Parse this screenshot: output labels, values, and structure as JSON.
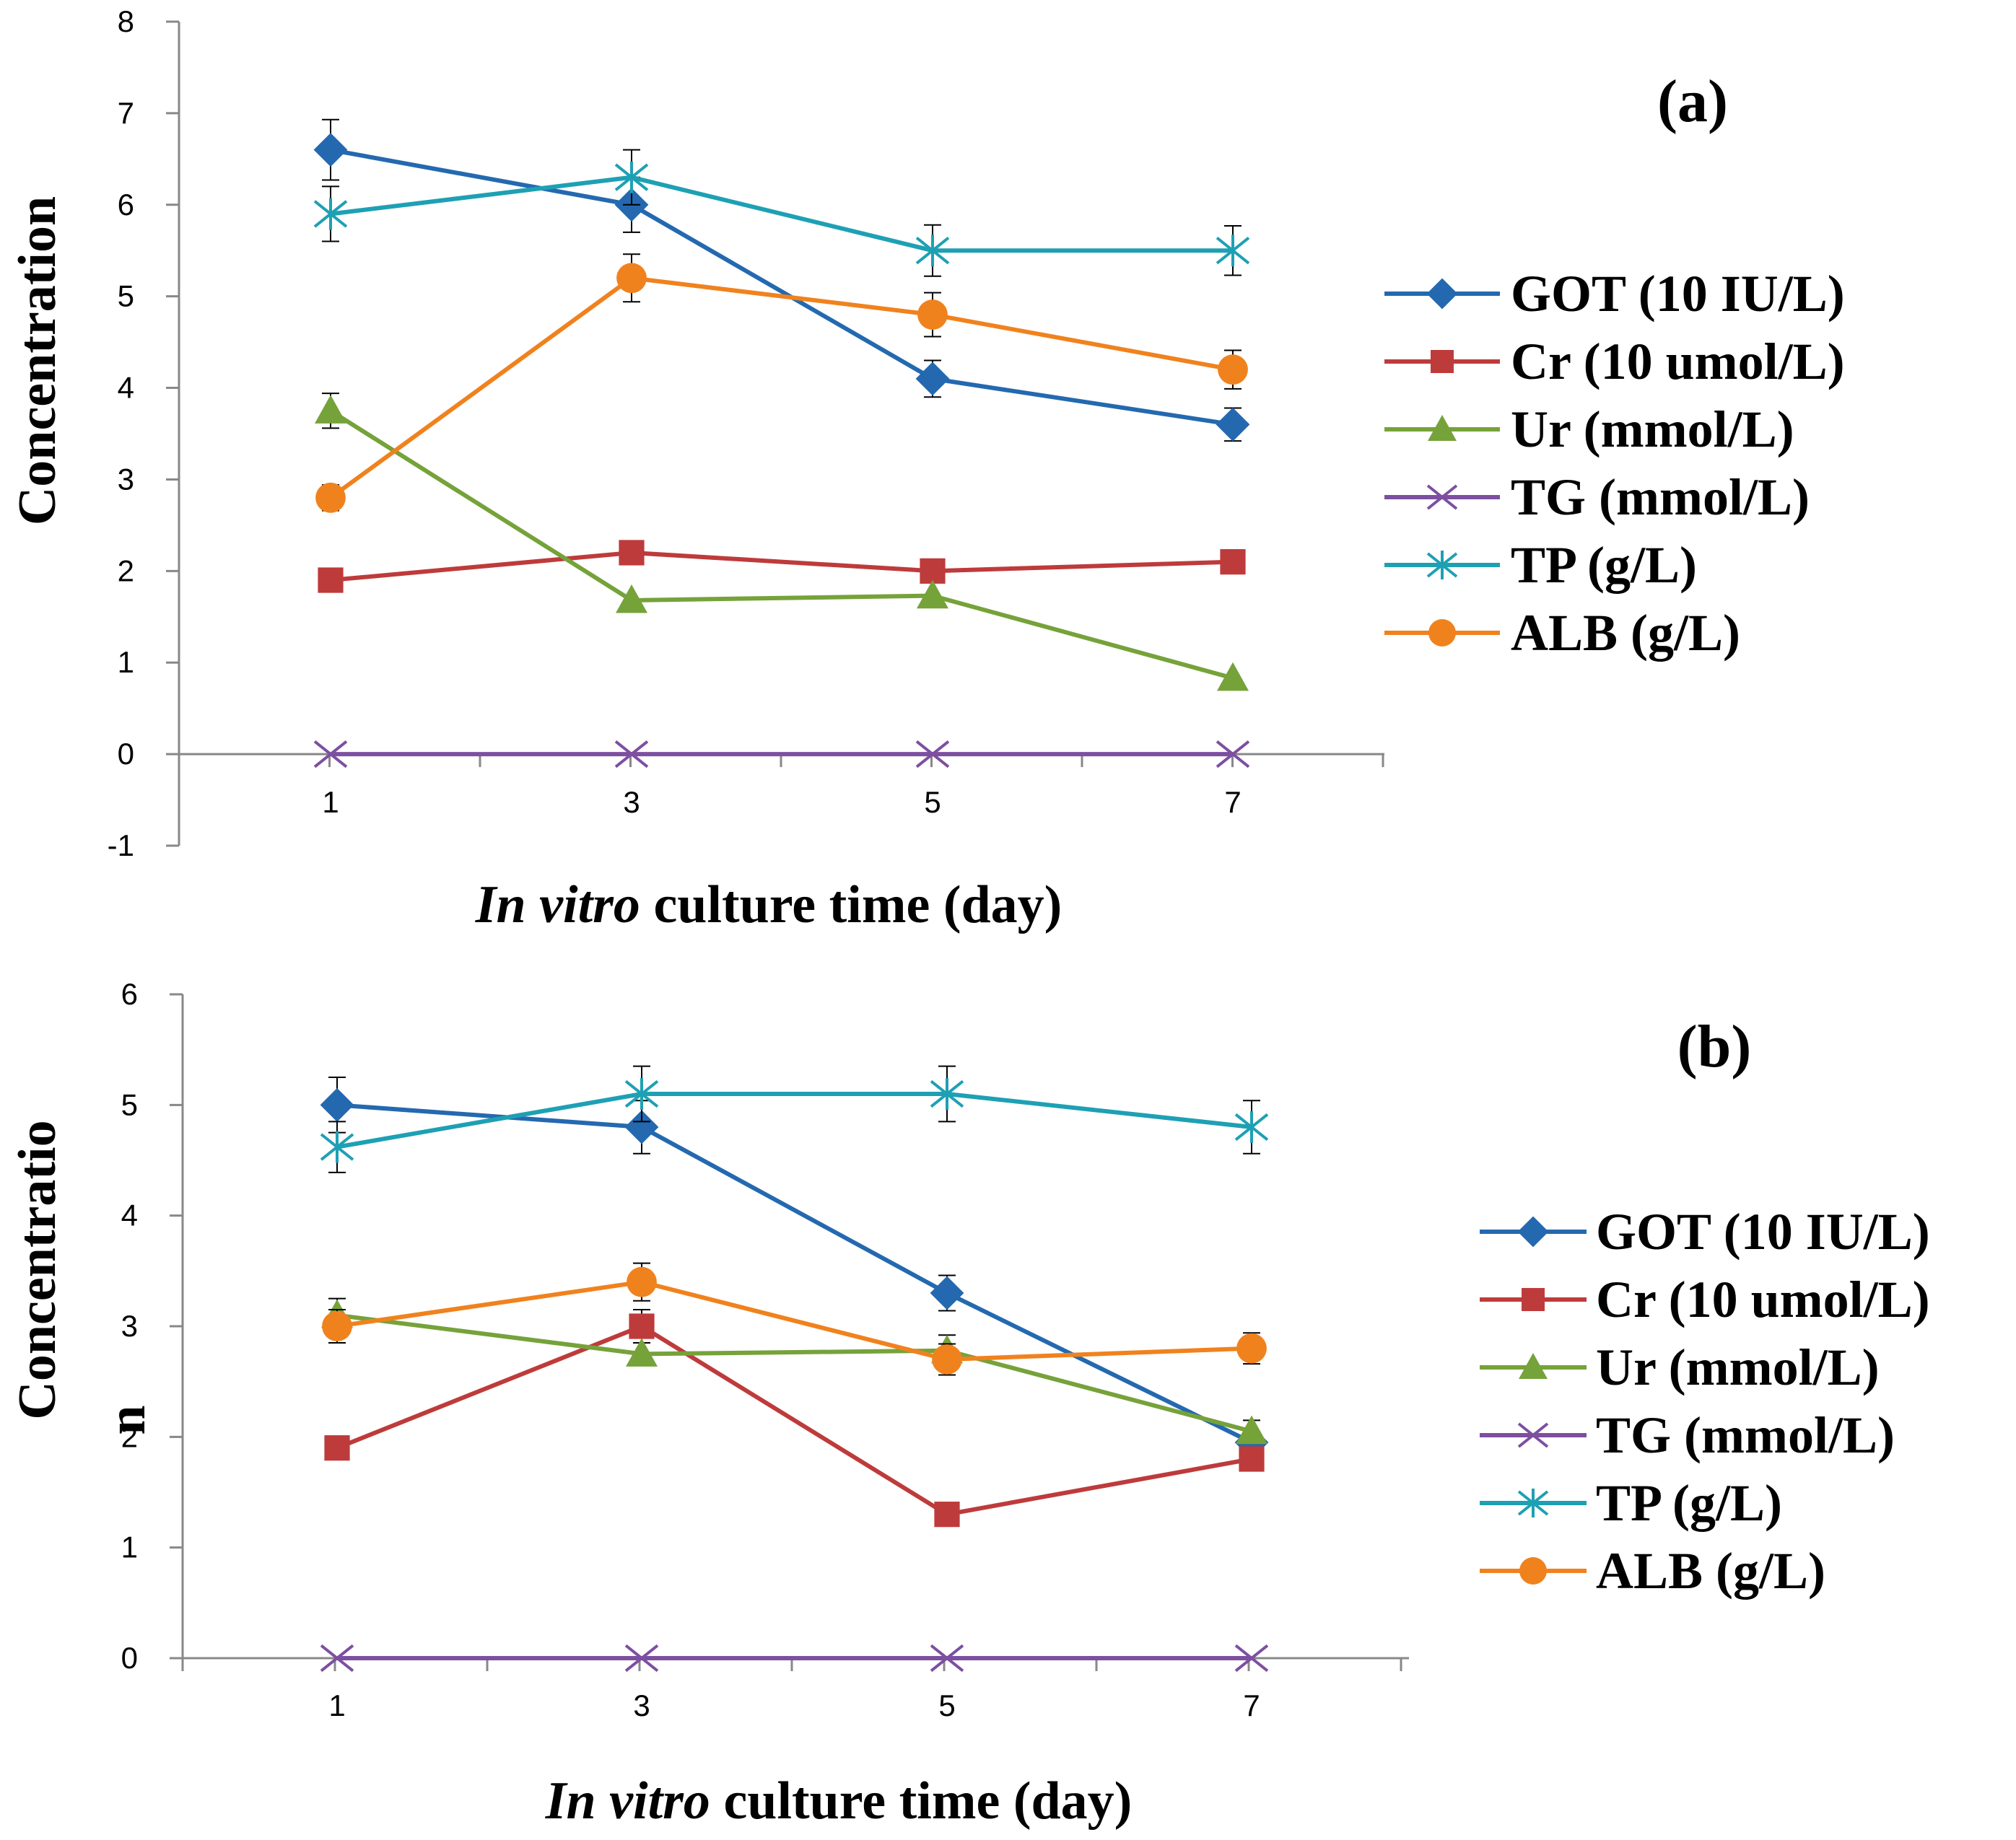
{
  "chart_data": [
    {
      "type": "line",
      "panel_label": "(a)",
      "ylabel": "Concentration",
      "xlabel_italic": "In vitro",
      "xlabel_rest": " culture time (day)",
      "categories": [
        "1",
        "3",
        "5",
        "7"
      ],
      "ylim": [
        -1,
        8
      ],
      "yticks": [
        "-1",
        "0",
        "1",
        "2",
        "3",
        "4",
        "5",
        "6",
        "7",
        "8"
      ],
      "grid": false,
      "legend_position": "right",
      "series": [
        {
          "name": "GOT  (10 IU/L)",
          "color": "#2469B0",
          "marker": "diamond",
          "values": [
            6.6,
            6.0,
            4.1,
            3.6
          ],
          "errors": [
            0.33,
            0.3,
            0.2,
            0.18
          ]
        },
        {
          "name": "Cr  (10 umol/L)",
          "color": "#BE3B3B",
          "marker": "square",
          "values": [
            1.9,
            2.2,
            2.0,
            2.1
          ],
          "errors": [
            0,
            0,
            0,
            0
          ]
        },
        {
          "name": "Ur  (mmol/L)",
          "color": "#76A23A",
          "marker": "triangle",
          "values": [
            3.75,
            1.68,
            1.73,
            0.83
          ],
          "errors": [
            0.19,
            0,
            0,
            0
          ]
        },
        {
          "name": "TG  (mmol/L)",
          "color": "#7D4FA0",
          "marker": "x",
          "values": [
            0,
            0,
            0,
            0
          ],
          "errors": [
            0,
            0,
            0,
            0
          ]
        },
        {
          "name": "TP  (g/L)",
          "color": "#1EA0B4",
          "marker": "star",
          "values": [
            5.9,
            6.3,
            5.5,
            5.5
          ],
          "errors": [
            0.3,
            0.3,
            0.28,
            0.27
          ]
        },
        {
          "name": "ALB  (g/L)",
          "color": "#F0821E",
          "marker": "circle",
          "values": [
            2.8,
            5.2,
            4.8,
            4.2
          ],
          "errors": [
            0.14,
            0.26,
            0.24,
            0.21
          ]
        }
      ]
    },
    {
      "type": "line",
      "panel_label": "(b)",
      "ylabel": "Concentratio",
      "ylabel_extra": "n",
      "xlabel_italic": "In vitro",
      "xlabel_rest": " culture time (day)",
      "categories": [
        "1",
        "3",
        "5",
        "7"
      ],
      "ylim": [
        0,
        6
      ],
      "yticks": [
        "0",
        "1",
        "2",
        "3",
        "4",
        "5",
        "6"
      ],
      "grid": false,
      "legend_position": "right",
      "series": [
        {
          "name": "GOT  (10 IU/L)",
          "color": "#2469B0",
          "marker": "diamond",
          "values": [
            5.0,
            4.8,
            3.3,
            1.95
          ],
          "errors": [
            0.25,
            0.24,
            0.16,
            0
          ]
        },
        {
          "name": "Cr  (10 umol/L)",
          "color": "#BE3B3B",
          "marker": "square",
          "values": [
            1.9,
            3.0,
            1.3,
            1.8
          ],
          "errors": [
            0,
            0.15,
            0,
            0
          ]
        },
        {
          "name": "Ur  (mmol/L)",
          "color": "#76A23A",
          "marker": "triangle",
          "values": [
            3.1,
            2.75,
            2.78,
            2.05
          ],
          "errors": [
            0.15,
            0,
            0.14,
            0.1
          ]
        },
        {
          "name": "TG  (mmol/L)",
          "color": "#7D4FA0",
          "marker": "x",
          "values": [
            0,
            0,
            0,
            0
          ],
          "errors": [
            0,
            0,
            0,
            0
          ]
        },
        {
          "name": "TP  (g/L)",
          "color": "#1EA0B4",
          "marker": "star",
          "values": [
            4.62,
            5.1,
            5.1,
            4.8
          ],
          "errors": [
            0.23,
            0.25,
            0.25,
            0.24
          ]
        },
        {
          "name": "ALB  (g/L)",
          "color": "#F0821E",
          "marker": "circle",
          "values": [
            3.0,
            3.4,
            2.7,
            2.8
          ],
          "errors": [
            0.15,
            0.17,
            0.14,
            0.14
          ]
        }
      ]
    }
  ]
}
